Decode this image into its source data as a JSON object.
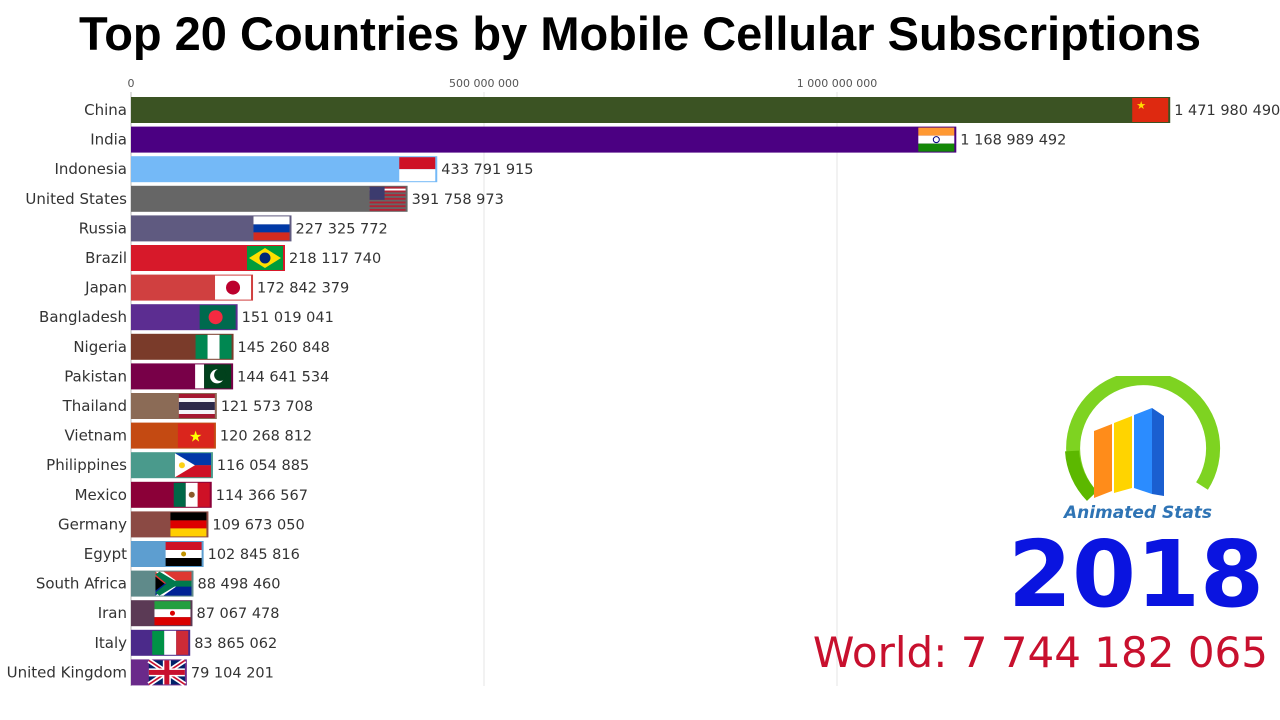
{
  "chart_data": {
    "type": "bar",
    "orientation": "horizontal",
    "title": "Top 20 Countries by Mobile Cellular Subscriptions",
    "year": "2018",
    "world_label": "World: 7 744 182 065",
    "xlim": [
      0,
      1500000000
    ],
    "xticks": [
      {
        "value": 0,
        "label": "0"
      },
      {
        "value": 500000000,
        "label": "500 000 000"
      },
      {
        "value": 1000000000,
        "label": "1 000 000 000"
      }
    ],
    "grid": true,
    "categories": [
      "China",
      "India",
      "Indonesia",
      "United States",
      "Russia",
      "Brazil",
      "Japan",
      "Bangladesh",
      "Nigeria",
      "Pakistan",
      "Thailand",
      "Vietnam",
      "Philippines",
      "Mexico",
      "Germany",
      "Egypt",
      "South Africa",
      "Iran",
      "Italy",
      "United Kingdom"
    ],
    "values": [
      1471980490,
      1168989492,
      433791915,
      391758973,
      227325772,
      218117740,
      172842379,
      151019041,
      145260848,
      144641534,
      121573708,
      120268812,
      116054885,
      114366567,
      109673050,
      102845816,
      88498460,
      87067478,
      83865062,
      79104201
    ],
    "value_labels": [
      "1 471 980 490",
      "1 168 989 492",
      "433 791 915",
      "391 758 973",
      "227 325 772",
      "218 117 740",
      "172 842 379",
      "151 019 041",
      "145 260 848",
      "144 641 534",
      "121 573 708",
      "120 268 812",
      "116 054 885",
      "114 366 567",
      "109 673 050",
      "102 845 816",
      "88 498 460",
      "87 067 478",
      "83 865 062",
      "79 104 201"
    ],
    "colors": [
      "#3b5323",
      "#4b0082",
      "#74b9f7",
      "#666666",
      "#5f5a80",
      "#d7192a",
      "#d04040",
      "#5c2d91",
      "#7a3b2a",
      "#780048",
      "#8b6b56",
      "#c44a12",
      "#4a9a8c",
      "#8b0038",
      "#8b4a44",
      "#5d9ed0",
      "#5f8a8a",
      "#5b3a55",
      "#4b2a8a",
      "#6a2a8a"
    ],
    "flags": [
      "china-flag",
      "india-flag",
      "indonesia-flag",
      "usa-flag",
      "russia-flag",
      "brazil-flag",
      "japan-flag",
      "bangladesh-flag",
      "nigeria-flag",
      "pakistan-flag",
      "thailand-flag",
      "vietnam-flag",
      "philippines-flag",
      "mexico-flag",
      "germany-flag",
      "egypt-flag",
      "south-africa-flag",
      "iran-flag",
      "italy-flag",
      "uk-flag"
    ]
  },
  "brand": {
    "name": "Animated Stats",
    "logo_icon": "animated-stats-logo",
    "name_color": "#2f74b5",
    "year_color": "#0a14e0",
    "world_color": "#c8102e"
  }
}
